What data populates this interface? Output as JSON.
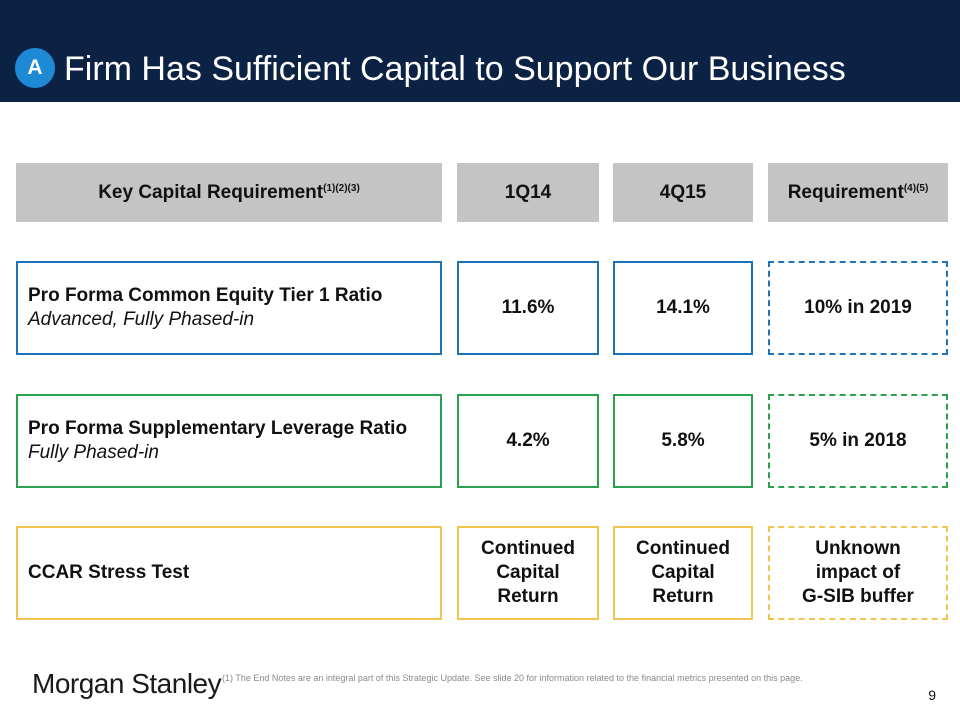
{
  "header": {
    "badge": "A",
    "title": "Firm Has Sufficient Capital to Support Our Business"
  },
  "table": {
    "columns": {
      "requirement": {
        "label": "Key Capital Requirement",
        "note": "(1)(2)(3)"
      },
      "period1": "1Q14",
      "period2": "4Q15",
      "target": {
        "label": "Requirement",
        "note": "(4)(5)"
      }
    },
    "rows": [
      {
        "name": "Pro Forma Common Equity Tier 1 Ratio",
        "detail": "Advanced, Fully Phased-in",
        "period1": "11.6%",
        "period2": "14.1%",
        "target": "10% in 2019",
        "color": "#1e72b8"
      },
      {
        "name": "Pro Forma Supplementary Leverage Ratio",
        "detail": "Fully Phased-in",
        "period1": "4.2%",
        "period2": "5.8%",
        "target": "5% in 2018",
        "color": "#2aa14e"
      },
      {
        "name": "CCAR Stress Test",
        "detail": "",
        "period1": [
          "Continued",
          "Capital",
          "Return"
        ],
        "period2": [
          "Continued",
          "Capital",
          "Return"
        ],
        "target": [
          "Unknown",
          "impact of",
          "G-SIB buffer"
        ],
        "color": "#f0c650"
      }
    ]
  },
  "footer": {
    "logo": "Morgan Stanley",
    "footnote": "(1)   The End Notes are an integral part of this Strategic Update.  See slide 20 for information related to the financial metrics presented on this page.",
    "page_number": "9"
  },
  "colors": {
    "header_bg": "#0b2244",
    "badge_bg": "#1e8ad6",
    "column_header_bg": "#c4c4c4"
  }
}
